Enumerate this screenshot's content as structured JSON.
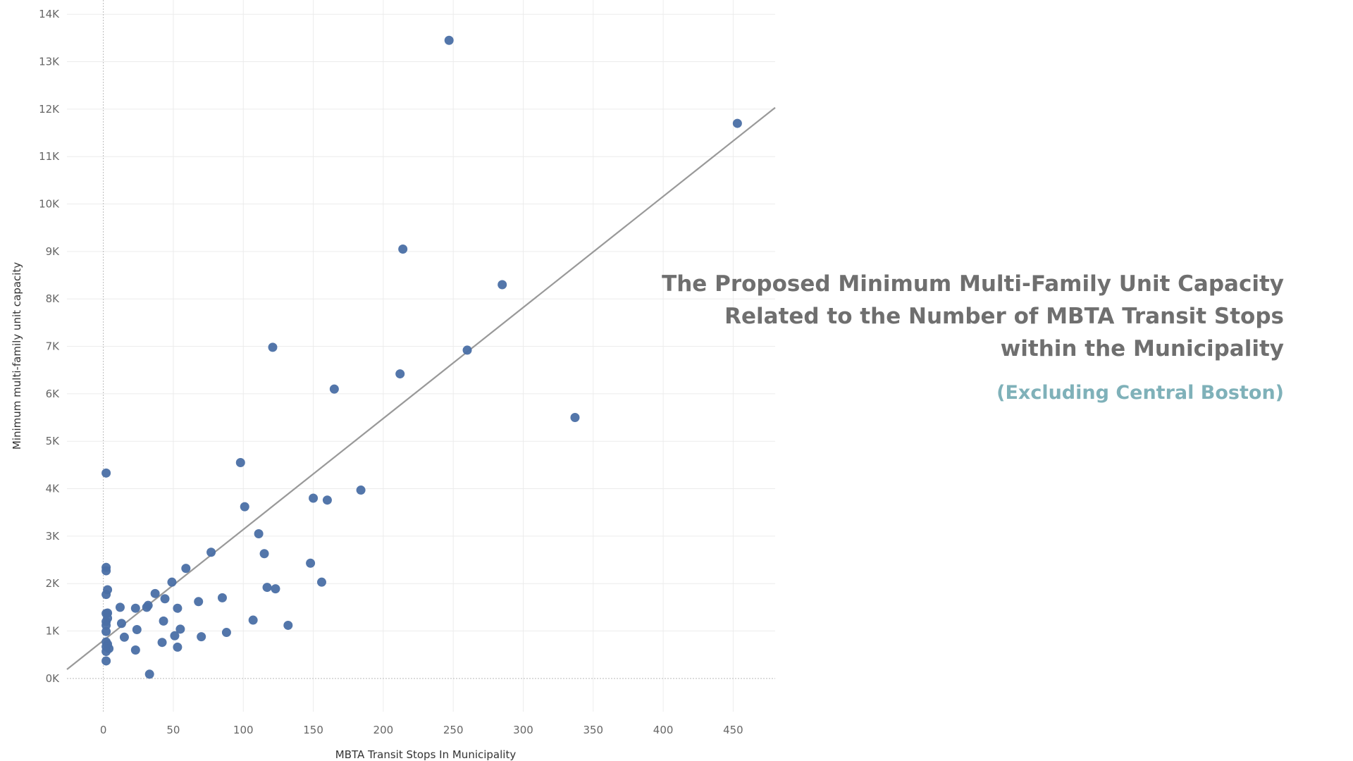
{
  "chart_data": {
    "type": "scatter",
    "title_lines": [
      "The Proposed Minimum Multi-Family Unit Capacity",
      "Related to the Number of MBTA Transit Stops",
      "within the Municipality"
    ],
    "subtitle": "(Excluding Central Boston)",
    "xlabel": "MBTA Transit Stops In Municipality",
    "ylabel": "Minimum multi-family unit capacity",
    "xlim": [
      -26,
      480
    ],
    "ylim": [
      -700,
      14300
    ],
    "x_ticks": [
      0,
      50,
      100,
      150,
      200,
      250,
      300,
      350,
      400,
      450
    ],
    "x_tick_labels": [
      "0",
      "50",
      "100",
      "150",
      "200",
      "250",
      "300",
      "350",
      "400",
      "450"
    ],
    "y_ticks": [
      0,
      1000,
      2000,
      3000,
      4000,
      5000,
      6000,
      7000,
      8000,
      9000,
      10000,
      11000,
      12000,
      13000,
      14000
    ],
    "y_tick_labels": [
      "0K",
      "1K",
      "2K",
      "3K",
      "4K",
      "5K",
      "6K",
      "7K",
      "8K",
      "9K",
      "10K",
      "11K",
      "12K",
      "13K",
      "14K"
    ],
    "grid": true,
    "point_color": "#4a6fa5",
    "trend_color": "#999999",
    "trend_line": {
      "slope": 23.4,
      "intercept": 800
    },
    "points": [
      {
        "x": 247,
        "y": 13450
      },
      {
        "x": 453,
        "y": 11700
      },
      {
        "x": 214,
        "y": 9050
      },
      {
        "x": 285,
        "y": 8300
      },
      {
        "x": 121,
        "y": 6980
      },
      {
        "x": 260,
        "y": 6920
      },
      {
        "x": 212,
        "y": 6420
      },
      {
        "x": 165,
        "y": 6100
      },
      {
        "x": 337,
        "y": 5500
      },
      {
        "x": 98,
        "y": 4550
      },
      {
        "x": 2,
        "y": 4330
      },
      {
        "x": 184,
        "y": 3970
      },
      {
        "x": 150,
        "y": 3800
      },
      {
        "x": 160,
        "y": 3760
      },
      {
        "x": 101,
        "y": 3620
      },
      {
        "x": 111,
        "y": 3050
      },
      {
        "x": 115,
        "y": 2630
      },
      {
        "x": 77,
        "y": 2660
      },
      {
        "x": 148,
        "y": 2430
      },
      {
        "x": 2,
        "y": 2340
      },
      {
        "x": 2,
        "y": 2270
      },
      {
        "x": 59,
        "y": 2320
      },
      {
        "x": 49,
        "y": 2030
      },
      {
        "x": 156,
        "y": 2030
      },
      {
        "x": 117,
        "y": 1920
      },
      {
        "x": 123,
        "y": 1890
      },
      {
        "x": 3,
        "y": 1870
      },
      {
        "x": 2,
        "y": 1770
      },
      {
        "x": 37,
        "y": 1790
      },
      {
        "x": 44,
        "y": 1680
      },
      {
        "x": 85,
        "y": 1700
      },
      {
        "x": 68,
        "y": 1620
      },
      {
        "x": 32,
        "y": 1540
      },
      {
        "x": 12,
        "y": 1500
      },
      {
        "x": 23,
        "y": 1480
      },
      {
        "x": 53,
        "y": 1480
      },
      {
        "x": 31,
        "y": 1500
      },
      {
        "x": 2,
        "y": 1370
      },
      {
        "x": 3,
        "y": 1380
      },
      {
        "x": 3,
        "y": 1270
      },
      {
        "x": 2,
        "y": 1200
      },
      {
        "x": 43,
        "y": 1210
      },
      {
        "x": 107,
        "y": 1230
      },
      {
        "x": 13,
        "y": 1160
      },
      {
        "x": 2,
        "y": 1120
      },
      {
        "x": 132,
        "y": 1120
      },
      {
        "x": 55,
        "y": 1040
      },
      {
        "x": 24,
        "y": 1030
      },
      {
        "x": 2,
        "y": 990
      },
      {
        "x": 88,
        "y": 970
      },
      {
        "x": 70,
        "y": 880
      },
      {
        "x": 51,
        "y": 900
      },
      {
        "x": 15,
        "y": 870
      },
      {
        "x": 2,
        "y": 770
      },
      {
        "x": 3,
        "y": 720
      },
      {
        "x": 42,
        "y": 760
      },
      {
        "x": 2,
        "y": 670
      },
      {
        "x": 4,
        "y": 630
      },
      {
        "x": 53,
        "y": 660
      },
      {
        "x": 23,
        "y": 600
      },
      {
        "x": 2,
        "y": 570
      },
      {
        "x": 2,
        "y": 370
      },
      {
        "x": 33,
        "y": 90
      }
    ]
  }
}
